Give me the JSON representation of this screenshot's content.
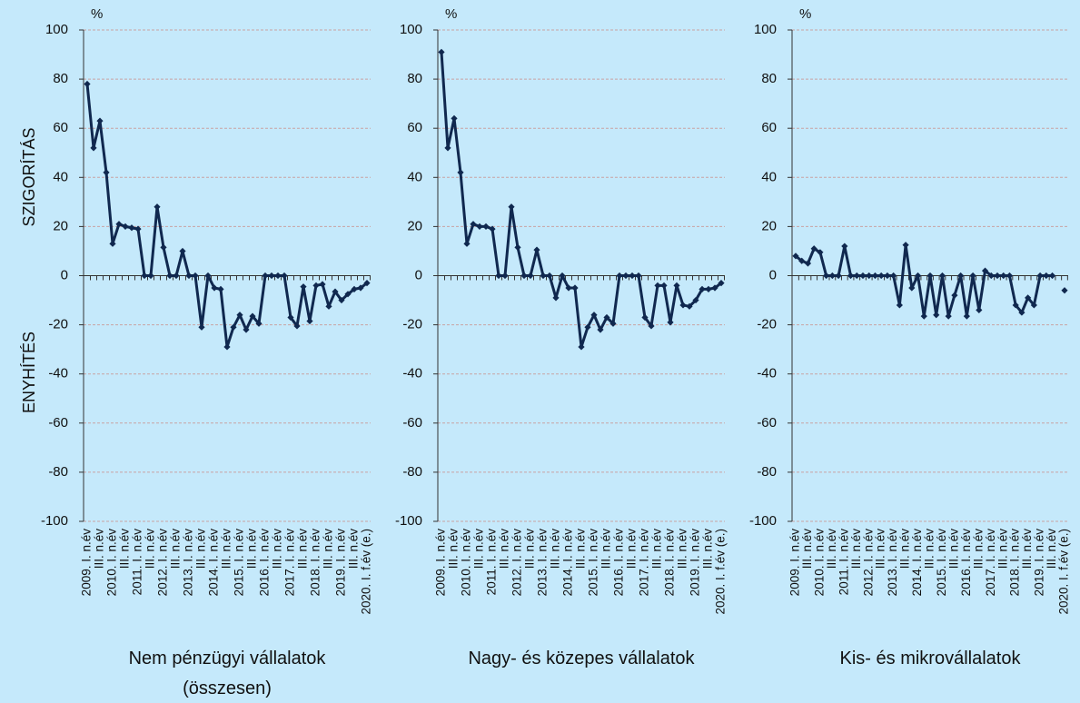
{
  "chart_data": [
    {
      "type": "line",
      "title": "Nem pénzügyi vállalatok (összesen)",
      "unit_label": "%",
      "ylabel_top": "SZIGORÍTÁS",
      "ylabel_bottom": "ENYHÍTÉS",
      "categories": [
        "2009. I. n.év",
        null,
        "III. n.év",
        null,
        "2010. I. n.év",
        null,
        "III. n.év",
        null,
        "2011. I. n.év",
        null,
        "III. n.év",
        null,
        "2012. I. n.év",
        null,
        "III. n.év",
        null,
        "2013. I. n.év",
        null,
        "III. n.év",
        null,
        "2014. I. n.év",
        null,
        "III. n.év",
        null,
        "2015. I. n.év",
        null,
        "III. n.év",
        null,
        "2016. I. n.év",
        null,
        "III. n.év",
        null,
        "2017. I. n.év",
        null,
        "III. n.év",
        null,
        "2018. I. n.év",
        null,
        "III. n.év",
        null,
        "2019. I. n.év",
        null,
        "III. n.év",
        null,
        "2020. I. f.év (e.)"
      ],
      "values": [
        78,
        52,
        63,
        42,
        13,
        21,
        20,
        19.5,
        19,
        0,
        0,
        28,
        11.5,
        0,
        0,
        10,
        0,
        0,
        -21,
        0,
        -5,
        -5.5,
        -29,
        -21,
        -16,
        -22,
        -16.5,
        -19.5,
        0,
        0,
        0,
        0,
        -17,
        -20.5,
        -4.5,
        -18.5,
        -4,
        -3.5,
        -12.5,
        -6.5,
        -10,
        -7.5,
        -5.5,
        -5,
        -3
      ],
      "color": "#10284f",
      "ylim": [
        -100,
        100
      ],
      "yticks": [
        -100,
        -80,
        -60,
        -40,
        -20,
        0,
        20,
        40,
        60,
        80,
        100
      ],
      "grid": true
    },
    {
      "type": "line",
      "title": "Nagy- és közepes vállalatok",
      "unit_label": "%",
      "categories": [
        "2009. I. n.év",
        null,
        "III. n.év",
        null,
        "2010. I. n.év",
        null,
        "III. n.év",
        null,
        "2011. I. n.év",
        null,
        "III. n.év",
        null,
        "2012. I. n.év",
        null,
        "III. n.év",
        null,
        "2013. I. n.év",
        null,
        "III. n.év",
        null,
        "2014. I. n.év",
        null,
        "III. n.év",
        null,
        "2015. I. n.év",
        null,
        "III. n.év",
        null,
        "2016. I. n.év",
        null,
        "III. n.év",
        null,
        "2017. I. n.év",
        null,
        "III. n.év",
        null,
        "2018. I. n.év",
        null,
        "III. n.év",
        null,
        "2019. I. n.év",
        null,
        "III. n.év",
        null,
        "2020. I. f.év (e.)"
      ],
      "values": [
        91,
        52,
        64,
        42,
        13,
        21,
        20,
        20,
        19,
        0,
        0,
        28,
        11.5,
        0,
        0,
        10.5,
        0,
        0,
        -9,
        0,
        -5,
        -5,
        -29,
        -21,
        -16,
        -22,
        -17,
        -19.5,
        0,
        0,
        0,
        0,
        -17,
        -20.5,
        -4,
        -4,
        -19,
        -4,
        -12,
        -12.5,
        -10,
        -5.5,
        -5.5,
        -5,
        -3
      ],
      "color": "#10284f",
      "ylim": [
        -100,
        100
      ],
      "yticks": [
        -100,
        -80,
        -60,
        -40,
        -20,
        0,
        20,
        40,
        60,
        80,
        100
      ],
      "grid": true
    },
    {
      "type": "line",
      "title": "Kis- és mikrovállalatok",
      "unit_label": "%",
      "categories": [
        "2009. I. n.év",
        null,
        "III. n.év",
        null,
        "2010. I. n.év",
        null,
        "III. n.év",
        null,
        "2011. I. n.év",
        null,
        "III. n.év",
        null,
        "2012. I. n.év",
        null,
        "III. n.év",
        null,
        "2013. I. n.év",
        null,
        "III. n.év",
        null,
        "2014. I. n.év",
        null,
        "III. n.év",
        null,
        "2015. I. n.év",
        null,
        "III. n.év",
        null,
        "2016. I. n.év",
        null,
        "III. n.év",
        null,
        "2017. I. n.év",
        null,
        "III. n.év",
        null,
        "2018. I. n.év",
        null,
        "III. n.év",
        null,
        "2019. I. n.év",
        null,
        "III. n.év",
        null,
        "2020. I. f.év (e.)"
      ],
      "values": [
        8,
        6,
        5,
        11,
        9.5,
        0,
        0,
        0,
        12,
        0,
        0,
        0,
        0,
        0,
        0,
        0,
        0,
        -12,
        12.5,
        -5,
        0,
        -16.5,
        0,
        -16,
        0,
        -16.5,
        -8,
        0,
        -16.5,
        0,
        -14,
        2,
        0,
        0,
        0,
        0,
        -12,
        -15,
        -9,
        -12,
        0,
        0,
        0,
        null,
        -6
      ],
      "color": "#10284f",
      "ylim": [
        -100,
        100
      ],
      "yticks": [
        -100,
        -80,
        -60,
        -40,
        -20,
        0,
        20,
        40,
        60,
        80,
        100
      ],
      "grid": true
    }
  ]
}
